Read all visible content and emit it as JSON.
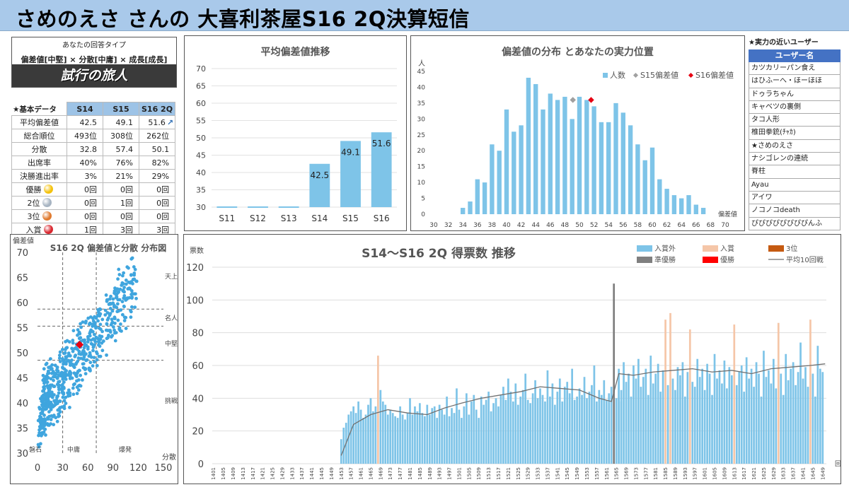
{
  "header": {
    "title": "さめのえさ さんの 大喜利茶屋S16 2Q決算短信"
  },
  "answer_type": {
    "caption": "あなたの回答タイプ",
    "tags": "偏差値[中堅] × 分散[中庸] × 成長[成長]",
    "name": "試行の旅人"
  },
  "basic_data": {
    "title": "★基本データ",
    "columns": [
      "S14",
      "S15",
      "S16 2Q"
    ],
    "trend_icon": "up-right-arrow-icon",
    "rows": [
      {
        "label": "平均偏差値",
        "values": [
          "42.5",
          "49.1",
          "51.6"
        ]
      },
      {
        "label": "総合順位",
        "values": [
          "493位",
          "308位",
          "262位"
        ]
      },
      {
        "label": "分散",
        "values": [
          "32.8",
          "57.4",
          "50.1"
        ]
      },
      {
        "label": "出席率",
        "values": [
          "40%",
          "76%",
          "82%"
        ]
      },
      {
        "label": "決勝進出率",
        "values": [
          "3%",
          "21%",
          "29%"
        ]
      },
      {
        "label": "優勝",
        "icon": "gold-medal-icon",
        "values": [
          "0回",
          "0回",
          "0回"
        ]
      },
      {
        "label": "2位",
        "icon": "silver-medal-icon",
        "values": [
          "0回",
          "1回",
          "0回"
        ]
      },
      {
        "label": "3位",
        "icon": "bronze-medal-icon",
        "values": [
          "0回",
          "0回",
          "0回"
        ]
      },
      {
        "label": "入賞",
        "icon": "rose-icon",
        "values": [
          "1回",
          "3回",
          "3回"
        ]
      }
    ]
  },
  "close_users": {
    "title": "★実力の近いユーザー",
    "header": "ユーザー名",
    "users": [
      "カツカリーパン食え",
      "はひふーへ・ほーほほ",
      "ドゥラちゃん",
      "キャベツの裏側",
      "タコ人形",
      "椎田拳銃(ﾁｬｶ)",
      "★さめのえさ",
      "ナシゴレンの連続",
      "脊柱",
      "Ayau",
      "アイワ",
      "ノコノコdeath",
      "ぴぴぴぴぴぴぴぴんふ"
    ]
  },
  "colors": {
    "bar": "#7ec4e8",
    "s15": "#a0a0a0",
    "s16": "#e60012",
    "prize": "#f5c6a8",
    "third": "#c55a11",
    "runner_up": "#7f7f7f",
    "win": "#ff0000",
    "avg_line": "#707070"
  },
  "chart_data": [
    {
      "id": "avg",
      "type": "bar",
      "title": "平均偏差値推移",
      "categories": [
        "S11",
        "S12",
        "S13",
        "S14",
        "S15",
        "S16"
      ],
      "values": [
        null,
        null,
        null,
        42.5,
        49.1,
        51.6
      ],
      "value_labels": [
        "",
        "",
        "",
        "42.5",
        "49.1",
        "51.6"
      ],
      "ylim": [
        30,
        70
      ],
      "yticks": [
        "30",
        "35",
        "40",
        "45",
        "50",
        "55",
        "60",
        "65",
        "70"
      ]
    },
    {
      "id": "dist",
      "type": "bar",
      "title": "偏差値の分布 とあなたの実力位置",
      "ylabel": "人",
      "xlabel": "偏差値",
      "xlim": [
        30,
        70
      ],
      "ylim": [
        0,
        45
      ],
      "xticks": [
        "30",
        "32",
        "34",
        "36",
        "38",
        "40",
        "42",
        "44",
        "46",
        "48",
        "50",
        "52",
        "54",
        "56",
        "58",
        "60",
        "62",
        "64",
        "66",
        "68",
        "70"
      ],
      "yticks": [
        "0",
        "5",
        "10",
        "15",
        "20",
        "25",
        "30",
        "35",
        "40",
        "45"
      ],
      "legend": [
        "人数",
        "S15偏差値",
        "S16偏差値"
      ],
      "bin_width": 1,
      "x": [
        34,
        35,
        36,
        37,
        38,
        39,
        40,
        41,
        42,
        43,
        44,
        45,
        46,
        47,
        48,
        49,
        50,
        51,
        52,
        53,
        54,
        55,
        56,
        57,
        58,
        59,
        60,
        61,
        62,
        63,
        64,
        65,
        66,
        67
      ],
      "values": [
        2,
        4,
        11,
        10,
        22,
        20,
        33,
        26,
        28,
        43,
        41,
        33,
        38,
        36,
        37,
        30,
        37,
        36,
        34,
        29,
        29,
        35,
        32,
        28,
        22,
        17,
        21,
        11,
        8,
        6,
        5,
        6,
        3,
        2
      ],
      "markers": [
        {
          "name": "S15偏差値",
          "x": 49.1,
          "y": 36
        },
        {
          "name": "S16偏差値",
          "x": 51.6,
          "y": 36
        }
      ]
    },
    {
      "id": "scatter",
      "type": "scatter",
      "title": "S16 2Q 偏差値と分散 分布図",
      "ylabel": "偏差値",
      "xlabel": "分散",
      "xlim": [
        0,
        150
      ],
      "ylim": [
        30,
        70
      ],
      "xticks": [
        "0",
        "30",
        "60",
        "90",
        "120",
        "150"
      ],
      "yticks": [
        "30",
        "35",
        "40",
        "45",
        "50",
        "55",
        "60",
        "65",
        "70"
      ],
      "zones_y": [
        "天上",
        "名人",
        "中堅",
        "挑戦"
      ],
      "zones_x": [
        "磐石",
        "中庸",
        "爆発"
      ],
      "divider_x": [
        30,
        70
      ],
      "divider_y": [
        48.5,
        55.3,
        58.7
      ],
      "you": {
        "x": 50.1,
        "y": 51.6
      }
    },
    {
      "id": "votes",
      "type": "bar",
      "title": "S14～S16 2Q 得票数 推移",
      "ylabel": "票数",
      "xlabel": "回",
      "ylim": [
        0,
        120
      ],
      "yticks": [
        "0",
        "20",
        "40",
        "60",
        "80",
        "100",
        "120"
      ],
      "x_range": [
        1401,
        1650
      ],
      "xticks": [
        "1401",
        "1405",
        "1409",
        "1413",
        "1417",
        "1421",
        "1425",
        "1429",
        "1433",
        "1437",
        "1441",
        "1445",
        "1449",
        "1453",
        "1457",
        "1461",
        "1465",
        "1469",
        "1473",
        "1477",
        "1481",
        "1485",
        "1489",
        "1493",
        "1497",
        "1501",
        "1505",
        "1509",
        "1513",
        "1517",
        "1521",
        "1525",
        "1529",
        "1533",
        "1537",
        "1541",
        "1545",
        "1549",
        "1553",
        "1557",
        "1561",
        "1565",
        "1569",
        "1573",
        "1577",
        "1581",
        "1585",
        "1589",
        "1593",
        "1597",
        "1601",
        "1605",
        "1609",
        "1613",
        "1617",
        "1621",
        "1625",
        "1629",
        "1633",
        "1637",
        "1641",
        "1645",
        "1649"
      ],
      "legend": [
        "入賞外",
        "入賞",
        "3位",
        "準優勝",
        "優勝",
        "平均10回戦"
      ],
      "segments": [
        {
          "start": 1453,
          "values": [
            15,
            22,
            25,
            30,
            32,
            35,
            31,
            38,
            33,
            28,
            30,
            36,
            40,
            32,
            35,
            28,
            45,
            38,
            36,
            30,
            33,
            31,
            29,
            28,
            35,
            30,
            27,
            31,
            40,
            30,
            35,
            32,
            37,
            31,
            29,
            36,
            30,
            34,
            35,
            28,
            36,
            33,
            30,
            41,
            29,
            34,
            31,
            46,
            33,
            28,
            35,
            43,
            30,
            38,
            42,
            33,
            28,
            41,
            36,
            39,
            44,
            32,
            37,
            40,
            35,
            42,
            47,
            39,
            52,
            44,
            38,
            49,
            36,
            41,
            45,
            55,
            39,
            37,
            43,
            51,
            40,
            46,
            42,
            38,
            57,
            41,
            49,
            36,
            44,
            52,
            38,
            47,
            50,
            43,
            58,
            39,
            41,
            46,
            42,
            53,
            40,
            44,
            48,
            60,
            38,
            45,
            42,
            51,
            39,
            43,
            47,
            41,
            40,
            50,
            38
          ]
        },
        {
          "start": 1566,
          "values": [
            58,
            45,
            62,
            50,
            55,
            41,
            60,
            52,
            64,
            47,
            53,
            58,
            42,
            66,
            49,
            55,
            61,
            44,
            57,
            63,
            48,
            70,
            52,
            45,
            59,
            54,
            62,
            41,
            56,
            68,
            50,
            47,
            64,
            53,
            58,
            45,
            61,
            55,
            42,
            67,
            52,
            57,
            49,
            63,
            46,
            59,
            54,
            71,
            48,
            56,
            60,
            44,
            65,
            52,
            58,
            47,
            62,
            55,
            41,
            69,
            53,
            57,
            49,
            64,
            46,
            60,
            55,
            42,
            67,
            51,
            58,
            62,
            48,
            56,
            74,
            52,
            59,
            47,
            63,
            55,
            41,
            72,
            58,
            56
          ]
        }
      ],
      "special": [
        {
          "x": 1468,
          "value": 66,
          "kind": "入賞"
        },
        {
          "x": 1564,
          "value": 110,
          "kind": "準優勝"
        },
        {
          "x": 1585,
          "value": 88,
          "kind": "入賞"
        },
        {
          "x": 1587,
          "value": 92,
          "kind": "入賞"
        },
        {
          "x": 1595,
          "value": 82,
          "kind": "入賞"
        },
        {
          "x": 1613,
          "value": 85,
          "kind": "入賞"
        },
        {
          "x": 1631,
          "value": 86,
          "kind": "入賞"
        },
        {
          "x": 1644,
          "value": 88,
          "kind": "入賞"
        }
      ],
      "avg10": [
        {
          "x": 1453,
          "y": 5
        },
        {
          "x": 1458,
          "y": 24
        },
        {
          "x": 1465,
          "y": 30
        },
        {
          "x": 1472,
          "y": 33
        },
        {
          "x": 1480,
          "y": 31
        },
        {
          "x": 1488,
          "y": 30
        },
        {
          "x": 1495,
          "y": 34
        },
        {
          "x": 1502,
          "y": 37
        },
        {
          "x": 1510,
          "y": 40
        },
        {
          "x": 1518,
          "y": 42
        },
        {
          "x": 1526,
          "y": 44
        },
        {
          "x": 1534,
          "y": 47
        },
        {
          "x": 1542,
          "y": 46
        },
        {
          "x": 1550,
          "y": 45
        },
        {
          "x": 1558,
          "y": 40
        },
        {
          "x": 1563,
          "y": 38
        },
        {
          "x": 1566,
          "y": 55
        },
        {
          "x": 1572,
          "y": 54
        },
        {
          "x": 1580,
          "y": 56
        },
        {
          "x": 1588,
          "y": 57
        },
        {
          "x": 1596,
          "y": 58
        },
        {
          "x": 1604,
          "y": 56
        },
        {
          "x": 1612,
          "y": 57
        },
        {
          "x": 1620,
          "y": 55
        },
        {
          "x": 1628,
          "y": 58
        },
        {
          "x": 1636,
          "y": 59
        },
        {
          "x": 1644,
          "y": 60
        },
        {
          "x": 1650,
          "y": 61
        }
      ]
    }
  ]
}
